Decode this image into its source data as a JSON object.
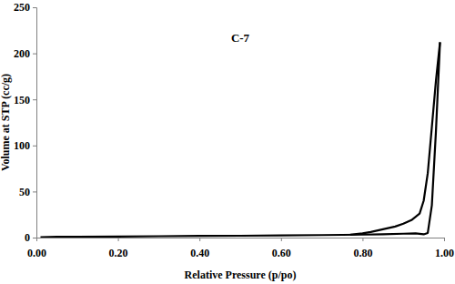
{
  "chart_data": {
    "type": "line",
    "title": "C-7",
    "x_label": "Relative Pressure (p/po)",
    "y_label": "Volume at STP (cc/g)",
    "xlim": [
      0,
      1
    ],
    "ylim": [
      0,
      250
    ],
    "xticks": [
      {
        "value": 0,
        "label": "0.00"
      },
      {
        "value": 0.2,
        "label": "0.20"
      },
      {
        "value": 0.4,
        "label": "0.40"
      },
      {
        "value": 0.6,
        "label": "0.60"
      },
      {
        "value": 0.8,
        "label": "0.80"
      },
      {
        "value": 1,
        "label": "1.00"
      }
    ],
    "yticks": [
      0,
      50,
      100,
      150,
      200,
      250
    ],
    "grid": false,
    "series": [
      {
        "color": "#000000",
        "x": [
          0.01,
          0.05,
          0.1,
          0.2,
          0.3,
          0.4,
          0.5,
          0.6,
          0.7,
          0.8,
          0.85,
          0.9,
          0.93,
          0.95,
          0.96,
          0.97,
          0.98,
          0.99
        ],
        "values": [
          0.5,
          0.8,
          1,
          1.2,
          1.5,
          1.8,
          2,
          2.3,
          2.7,
          3.2,
          3.6,
          4.2,
          4.6,
          3.5,
          5,
          35,
          115,
          212
        ]
      },
      {
        "color": "#000000",
        "x": [
          0.99,
          0.98,
          0.97,
          0.96,
          0.95,
          0.94,
          0.92,
          0.9,
          0.88,
          0.85,
          0.82,
          0.8,
          0.77
        ],
        "values": [
          212,
          170,
          120,
          70,
          40,
          26,
          19,
          15,
          12,
          9,
          6,
          4.5,
          3
        ]
      }
    ]
  }
}
